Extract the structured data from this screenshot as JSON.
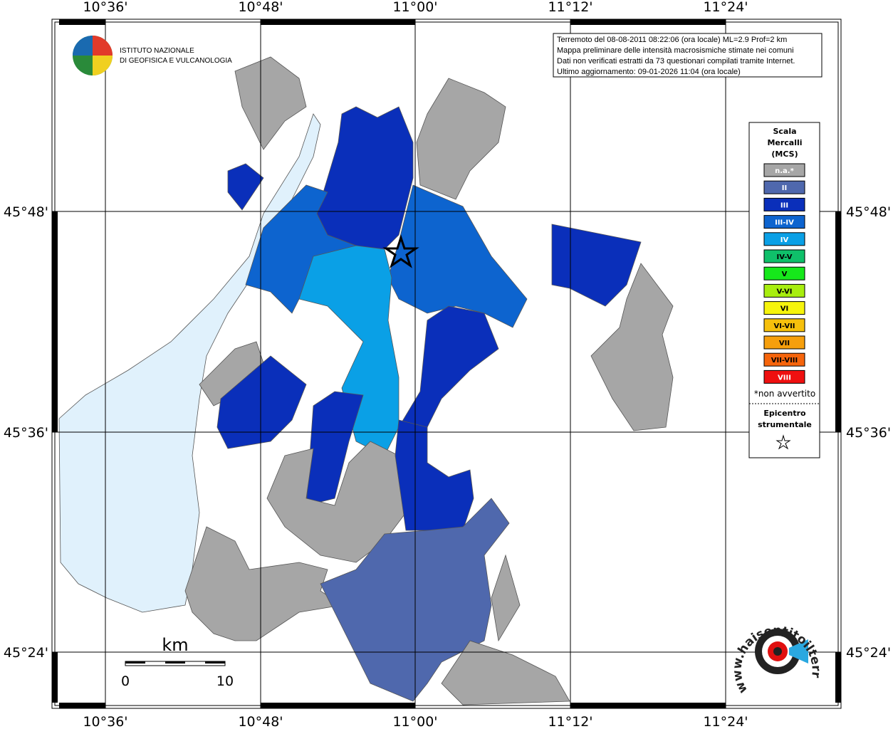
{
  "map": {
    "lon_labels": [
      "10°36'",
      "10°48'",
      "11°00'",
      "11°12'",
      "11°24'"
    ],
    "lat_labels": [
      "45°48'",
      "45°36'",
      "45°24'"
    ],
    "logo": [
      "ISTITUTO NAZIONALE",
      "DI GEOFISICA E VULCANOLOGIA"
    ],
    "info": [
      "Terremoto del 08-08-2011 08:22:06 (ora locale) ML=2.9 Prof=2 km",
      "Mappa preliminare delle intensità macrosismiche stimate nei comuni",
      "Dati non verificati estratti da 73 questionari compilati tramite Internet.",
      "Ultimo aggiornamento: 09-01-2026 11:04 (ora locale)"
    ],
    "legend": {
      "title": [
        "Scala",
        "Mercalli",
        "(MCS)"
      ],
      "items": [
        {
          "label": "n.a.*",
          "color": "#a6a6a6"
        },
        {
          "label": "II",
          "color": "#4f68ad"
        },
        {
          "label": "III",
          "color": "#0a2fba"
        },
        {
          "label": "III-IV",
          "color": "#0d64cf"
        },
        {
          "label": "IV",
          "color": "#0aa0e6"
        },
        {
          "label": "IV-V",
          "color": "#0fc06a"
        },
        {
          "label": "V",
          "color": "#16e81b"
        },
        {
          "label": "V-VI",
          "color": "#a8ee0f"
        },
        {
          "label": "VI",
          "color": "#f6f40c"
        },
        {
          "label": "VI-VII",
          "color": "#f6c00c"
        },
        {
          "label": "VII",
          "color": "#f69f0c"
        },
        {
          "label": "VII-VIII",
          "color": "#f6650c"
        },
        {
          "label": "VIII",
          "color": "#ef1010"
        }
      ],
      "note": "*non avvertito",
      "epicenter": [
        "Epicentro",
        "strumentale"
      ]
    },
    "scale": {
      "unit": "km",
      "start": "0",
      "end": "10"
    },
    "site": "www.haisentitoilterremoto.it"
  }
}
